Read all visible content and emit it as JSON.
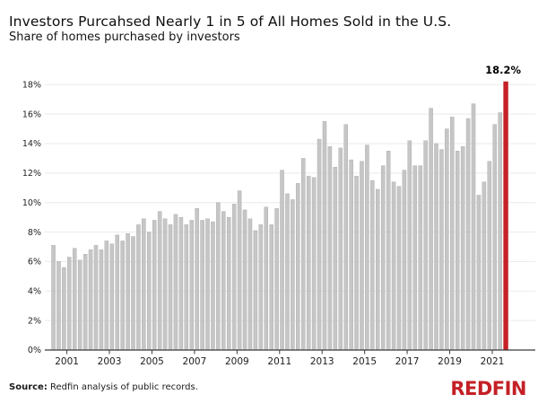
{
  "header": {
    "title": "Investors Purcahsed Nearly 1 in 5 of All Homes Sold in the U.S.",
    "subtitle": "Share of homes purchased by investors"
  },
  "chart_data": {
    "type": "bar",
    "title": "Investors Purcahsed Nearly 1 in 5 of All Homes Sold in the U.S.",
    "subtitle": "Share of homes purchased by investors",
    "unit": "%",
    "grid": "horizontal",
    "legend": "none",
    "ylim": [
      0,
      18
    ],
    "ytick_step": 2,
    "ytick_labels": [
      "0%",
      "2%",
      "4%",
      "6%",
      "8%",
      "10%",
      "12%",
      "14%",
      "16%",
      "18%"
    ],
    "xtick_labels": [
      "2001",
      "2003",
      "2005",
      "2007",
      "2009",
      "2011",
      "2013",
      "2015",
      "2017",
      "2019",
      "2021"
    ],
    "bar_color": "#c6c6c6",
    "bar_edge_color": "#a9a9a9",
    "x": [
      "2000 Q2",
      "2000 Q3",
      "2000 Q4",
      "2001 Q1",
      "2001 Q2",
      "2001 Q3",
      "2001 Q4",
      "2002 Q1",
      "2002 Q2",
      "2002 Q3",
      "2002 Q4",
      "2003 Q1",
      "2003 Q2",
      "2003 Q3",
      "2003 Q4",
      "2004 Q1",
      "2004 Q2",
      "2004 Q3",
      "2004 Q4",
      "2005 Q1",
      "2005 Q2",
      "2005 Q3",
      "2005 Q4",
      "2006 Q1",
      "2006 Q2",
      "2006 Q3",
      "2006 Q4",
      "2007 Q1",
      "2007 Q2",
      "2007 Q3",
      "2007 Q4",
      "2008 Q1",
      "2008 Q2",
      "2008 Q3",
      "2008 Q4",
      "2009 Q1",
      "2009 Q2",
      "2009 Q3",
      "2009 Q4",
      "2010 Q1",
      "2010 Q2",
      "2010 Q3",
      "2010 Q4",
      "2011 Q1",
      "2011 Q2",
      "2011 Q3",
      "2011 Q4",
      "2012 Q1",
      "2012 Q2",
      "2012 Q3",
      "2012 Q4",
      "2013 Q1",
      "2013 Q2",
      "2013 Q3",
      "2013 Q4",
      "2014 Q1",
      "2014 Q2",
      "2014 Q3",
      "2014 Q4",
      "2015 Q1",
      "2015 Q2",
      "2015 Q3",
      "2015 Q4",
      "2016 Q1",
      "2016 Q2",
      "2016 Q3",
      "2016 Q4",
      "2017 Q1",
      "2017 Q2",
      "2017 Q3",
      "2017 Q4",
      "2018 Q1",
      "2018 Q2",
      "2018 Q3",
      "2018 Q4",
      "2019 Q1",
      "2019 Q2",
      "2019 Q3",
      "2019 Q4",
      "2020 Q1",
      "2020 Q2",
      "2020 Q3",
      "2020 Q4",
      "2021 Q1",
      "2021 Q2",
      "2021 Q3"
    ],
    "values": [
      7.1,
      6.0,
      5.6,
      6.3,
      6.9,
      6.1,
      6.5,
      6.8,
      7.1,
      6.8,
      7.4,
      7.2,
      7.8,
      7.4,
      7.9,
      7.7,
      8.5,
      8.9,
      8.0,
      8.8,
      9.4,
      8.9,
      8.5,
      9.2,
      9.0,
      8.5,
      8.8,
      9.6,
      8.8,
      8.9,
      8.7,
      10.0,
      9.4,
      9.0,
      9.9,
      10.8,
      9.5,
      8.9,
      8.1,
      8.5,
      9.7,
      8.5,
      9.6,
      12.2,
      10.6,
      10.2,
      11.3,
      13.0,
      11.8,
      11.7,
      14.3,
      15.5,
      13.8,
      12.4,
      13.7,
      15.3,
      12.9,
      11.8,
      12.8,
      13.9,
      11.5,
      10.9,
      12.5,
      13.5,
      11.4,
      11.1,
      12.2,
      14.2,
      12.5,
      12.5,
      14.2,
      16.4,
      14.0,
      13.6,
      15.0,
      15.8,
      13.5,
      13.8,
      15.7,
      16.7,
      10.5,
      11.4,
      12.8,
      15.3,
      16.1,
      18.2
    ],
    "highlight": {
      "index": 85,
      "x": "2021 Q3",
      "value": 18.2,
      "label": "18.2%",
      "color": "#c52127"
    }
  },
  "footer": {
    "source_label": "Source:",
    "source_text": " Redfin analysis of public records.",
    "logo_text": "REDFIN",
    "logo_color": "#c42026"
  }
}
